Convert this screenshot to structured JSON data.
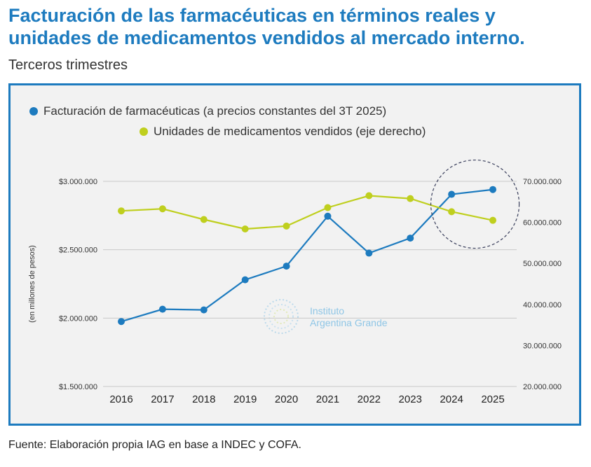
{
  "header": {
    "title": "Facturación de las farmacéuticas en términos reales y unidades de medicamentos vendidos al mercado interno.",
    "subtitle": "Terceros trimestres"
  },
  "footer": {
    "source": "Fuente: Elaboración propia IAG en base a INDEC y COFA."
  },
  "watermark": {
    "line1": "Instituto",
    "line2": "Argentina Grande"
  },
  "colors": {
    "blue": "#1d7bbf",
    "green": "#bfcf1e",
    "grid": "#c8c8c8",
    "frame": "#1d7bbf"
  },
  "chart_data": {
    "type": "line",
    "categories": [
      "2016",
      "2017",
      "2018",
      "2019",
      "2020",
      "2021",
      "2022",
      "2023",
      "2024",
      "2025"
    ],
    "series": [
      {
        "name": "Facturación de farmacéuticas (a precios constantes del 3T 2025)",
        "axis": "left",
        "color": "#1d7bbf",
        "values": [
          1975000,
          2065000,
          2060000,
          2280000,
          2380000,
          2745000,
          2475000,
          2585000,
          2905000,
          2940000
        ]
      },
      {
        "name": "Unidades de medicamentos vendidos (eje derecho)",
        "axis": "right",
        "color": "#bfcf1e",
        "values": [
          62800000,
          63300000,
          60700000,
          58400000,
          59100000,
          63600000,
          66500000,
          65800000,
          62600000,
          60500000
        ]
      }
    ],
    "y_left": {
      "label": "(en millones de pesos)",
      "min": 1500000,
      "max": 3000000,
      "ticks": [
        3000000,
        2500000,
        2000000,
        1500000
      ],
      "tick_labels": [
        "$3.000.000",
        "$2.500.000",
        "$2.000.000",
        "$1.500.000"
      ]
    },
    "y_right": {
      "min": 20000000,
      "max": 70000000,
      "ticks": [
        70000000,
        60000000,
        50000000,
        40000000,
        30000000,
        20000000
      ],
      "tick_labels": [
        "70.000.000",
        "60.000.000",
        "50.000.000",
        "40.000.000",
        "30.000.000",
        "20.000.000"
      ]
    },
    "grid": "horizontal",
    "legend": "top",
    "highlight": {
      "type": "dashed-circle",
      "categories": [
        "2024",
        "2025"
      ]
    }
  }
}
